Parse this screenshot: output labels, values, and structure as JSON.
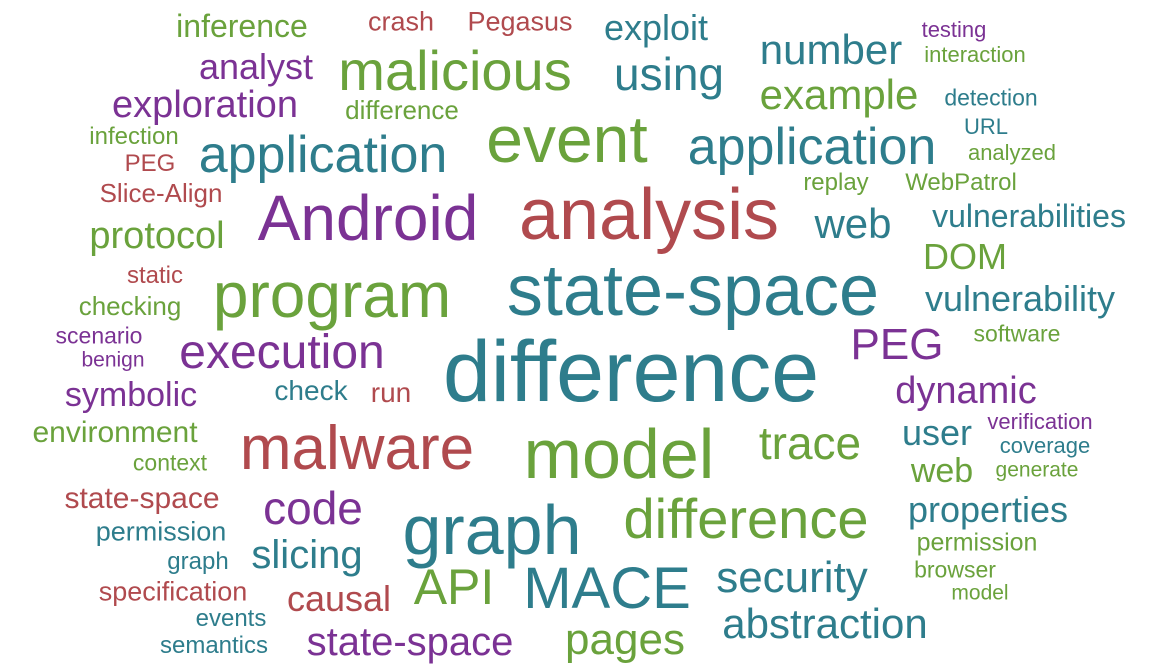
{
  "colors": {
    "teal": "#2e7d8c",
    "green": "#6aa23c",
    "red": "#b04a4e",
    "purple": "#7b3294"
  },
  "words": [
    {
      "text": "inference",
      "color": "green"
    },
    {
      "text": "crash",
      "color": "red"
    },
    {
      "text": "Pegasus",
      "color": "red"
    },
    {
      "text": "exploit",
      "color": "teal"
    },
    {
      "text": "testing",
      "color": "purple"
    },
    {
      "text": "interaction",
      "color": "green"
    },
    {
      "text": "analyst",
      "color": "purple"
    },
    {
      "text": "malicious",
      "color": "green"
    },
    {
      "text": "using",
      "color": "teal"
    },
    {
      "text": "number",
      "color": "teal"
    },
    {
      "text": "example",
      "color": "green"
    },
    {
      "text": "detection",
      "color": "teal"
    },
    {
      "text": "exploration",
      "color": "purple"
    },
    {
      "text": "difference",
      "color": "green"
    },
    {
      "text": "URL",
      "color": "teal"
    },
    {
      "text": "infection",
      "color": "green"
    },
    {
      "text": "event",
      "color": "green"
    },
    {
      "text": "application",
      "color": "teal"
    },
    {
      "text": "analyzed",
      "color": "green"
    },
    {
      "text": "PEG",
      "color": "red"
    },
    {
      "text": "application",
      "color": "teal"
    },
    {
      "text": "Slice-Align",
      "color": "red"
    },
    {
      "text": "replay",
      "color": "green"
    },
    {
      "text": "WebPatrol",
      "color": "green"
    },
    {
      "text": "Android",
      "color": "purple"
    },
    {
      "text": "analysis",
      "color": "red"
    },
    {
      "text": "vulnerabilities",
      "color": "teal"
    },
    {
      "text": "protocol",
      "color": "green"
    },
    {
      "text": "web",
      "color": "teal"
    },
    {
      "text": "DOM",
      "color": "green"
    },
    {
      "text": "static",
      "color": "red"
    },
    {
      "text": "program",
      "color": "green"
    },
    {
      "text": "state-space",
      "color": "teal"
    },
    {
      "text": "checking",
      "color": "green"
    },
    {
      "text": "vulnerability",
      "color": "teal"
    },
    {
      "text": "scenario",
      "color": "purple"
    },
    {
      "text": "software",
      "color": "green"
    },
    {
      "text": "execution",
      "color": "purple"
    },
    {
      "text": "PEG",
      "color": "purple"
    },
    {
      "text": "benign",
      "color": "purple"
    },
    {
      "text": "difference",
      "color": "teal"
    },
    {
      "text": "symbolic",
      "color": "purple"
    },
    {
      "text": "check",
      "color": "teal"
    },
    {
      "text": "run",
      "color": "red"
    },
    {
      "text": "dynamic",
      "color": "purple"
    },
    {
      "text": "environment",
      "color": "green"
    },
    {
      "text": "verification",
      "color": "purple"
    },
    {
      "text": "malware",
      "color": "red"
    },
    {
      "text": "model",
      "color": "green"
    },
    {
      "text": "trace",
      "color": "green"
    },
    {
      "text": "user",
      "color": "teal"
    },
    {
      "text": "coverage",
      "color": "teal"
    },
    {
      "text": "context",
      "color": "green"
    },
    {
      "text": "web",
      "color": "green"
    },
    {
      "text": "generate",
      "color": "green"
    },
    {
      "text": "state-space",
      "color": "red"
    },
    {
      "text": "code",
      "color": "purple"
    },
    {
      "text": "difference",
      "color": "green"
    },
    {
      "text": "properties",
      "color": "teal"
    },
    {
      "text": "graph",
      "color": "teal"
    },
    {
      "text": "permission",
      "color": "teal"
    },
    {
      "text": "slicing",
      "color": "teal"
    },
    {
      "text": "permission",
      "color": "green"
    },
    {
      "text": "graph",
      "color": "teal"
    },
    {
      "text": "API",
      "color": "green"
    },
    {
      "text": "MACE",
      "color": "teal"
    },
    {
      "text": "security",
      "color": "teal"
    },
    {
      "text": "browser",
      "color": "green"
    },
    {
      "text": "specification",
      "color": "red"
    },
    {
      "text": "causal",
      "color": "red"
    },
    {
      "text": "model",
      "color": "green"
    },
    {
      "text": "events",
      "color": "teal"
    },
    {
      "text": "abstraction",
      "color": "teal"
    },
    {
      "text": "semantics",
      "color": "teal"
    },
    {
      "text": "state-space",
      "color": "purple"
    },
    {
      "text": "pages",
      "color": "green"
    }
  ]
}
